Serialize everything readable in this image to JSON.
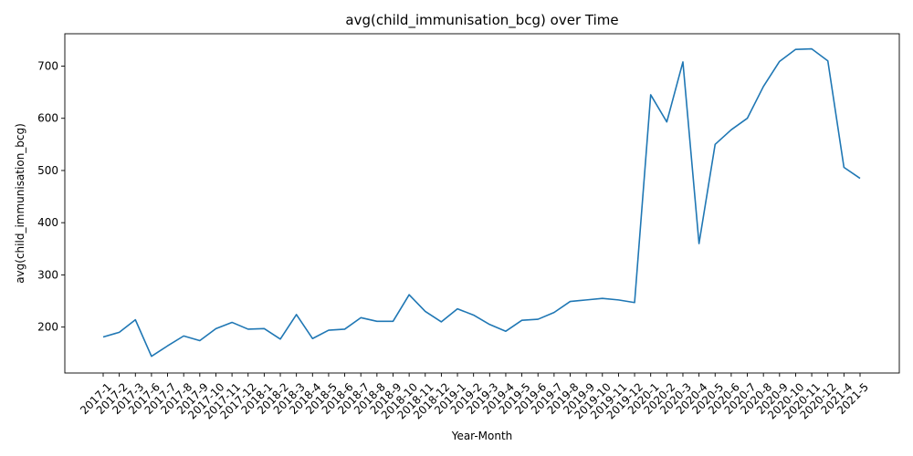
{
  "chart_data": {
    "type": "line",
    "title": "avg(child_immunisation_bcg) over Time",
    "xlabel": "Year-Month",
    "ylabel": "avg(child_immunisation_bcg)",
    "grid": false,
    "ylim": [
      112,
      762
    ],
    "yticks": [
      200,
      300,
      400,
      500,
      600,
      700
    ],
    "categories": [
      "2017-1",
      "2017-2",
      "2017-3",
      "2017-6",
      "2017-7",
      "2017-8",
      "2017-9",
      "2017-10",
      "2017-11",
      "2017-12",
      "2018-1",
      "2018-2",
      "2018-3",
      "2018-4",
      "2018-5",
      "2018-6",
      "2018-7",
      "2018-8",
      "2018-9",
      "2018-10",
      "2018-11",
      "2018-12",
      "2019-1",
      "2019-2",
      "2019-3",
      "2019-4",
      "2019-5",
      "2019-6",
      "2019-7",
      "2019-8",
      "2019-9",
      "2019-10",
      "2019-11",
      "2019-12",
      "2020-1",
      "2020-2",
      "2020-3",
      "2020-4",
      "2020-5",
      "2020-6",
      "2020-7",
      "2020-8",
      "2020-9",
      "2020-10",
      "2020-11",
      "2020-12",
      "2021-4",
      "2021-5"
    ],
    "series": [
      {
        "color": "#1f77b4",
        "values": [
          181,
          190,
          214,
          144,
          164,
          183,
          174,
          197,
          209,
          196,
          197,
          177,
          224,
          178,
          194,
          196,
          218,
          211,
          211,
          262,
          230,
          210,
          235,
          223,
          205,
          192,
          213,
          215,
          228,
          249,
          252,
          255,
          252,
          247,
          645,
          593,
          708,
          360,
          550,
          578,
          600,
          661,
          709,
          732,
          733,
          710,
          506,
          485
        ]
      }
    ]
  }
}
